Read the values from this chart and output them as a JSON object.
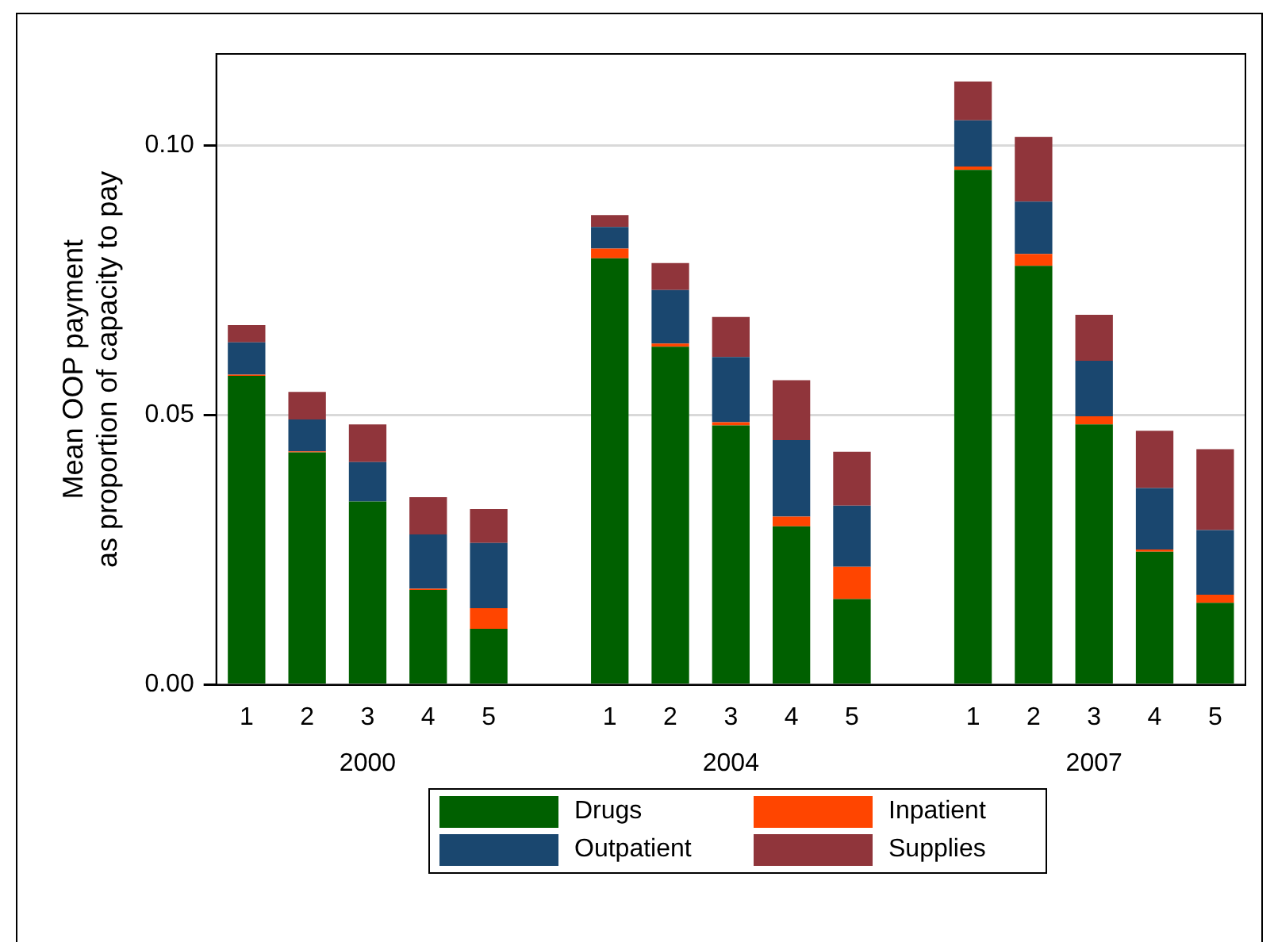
{
  "chart_data": {
    "type": "bar",
    "stacked": true,
    "categories": [
      "1",
      "2",
      "3",
      "4",
      "5",
      null,
      "1",
      "2",
      "3",
      "4",
      "5",
      null,
      "1",
      "2",
      "3",
      "4",
      "5"
    ],
    "series": [
      {
        "name": "Drugs",
        "color": "#006000",
        "values": [
          0.0573,
          0.0431,
          0.034,
          0.0176,
          0.0104,
          null,
          0.0791,
          0.0627,
          0.0481,
          0.0294,
          0.0159,
          null,
          0.0955,
          0.0777,
          0.0483,
          0.0247,
          0.0152
        ]
      },
      {
        "name": "Inpatient",
        "color": "#ff4500",
        "values": [
          0.0002,
          0.0002,
          0,
          0.0002,
          0.0038,
          null,
          0.0018,
          0.0006,
          0.0006,
          0.0018,
          0.006,
          null,
          0.0006,
          0.0022,
          0.0015,
          0.0004,
          0.0015
        ]
      },
      {
        "name": "Outpatient",
        "color": "#1a476f",
        "values": [
          0.006,
          0.0059,
          0.0073,
          0.0101,
          0.0121,
          null,
          0.004,
          0.0099,
          0.0121,
          0.0142,
          0.0113,
          null,
          0.0086,
          0.0097,
          0.0103,
          0.0114,
          0.012
        ]
      },
      {
        "name": "Supplies",
        "color": "#90353b",
        "values": [
          0.0032,
          0.0051,
          0.007,
          0.0069,
          0.0063,
          null,
          0.0022,
          0.005,
          0.0074,
          0.0111,
          0.01,
          null,
          0.0072,
          0.012,
          0.0085,
          0.0106,
          0.015
        ]
      }
    ],
    "ylabel": "Mean OOP payment\nas proportion of capacity to pay",
    "ylim": [
      0,
      0.117
    ],
    "yticks": [
      {
        "value": 0,
        "label": "0.00"
      },
      0.05,
      {
        "value": 0.1,
        "label": "0.10"
      }
    ],
    "annotations": [
      "2000",
      "2004",
      "2007"
    ],
    "grid": "y",
    "legend": "bottom"
  }
}
